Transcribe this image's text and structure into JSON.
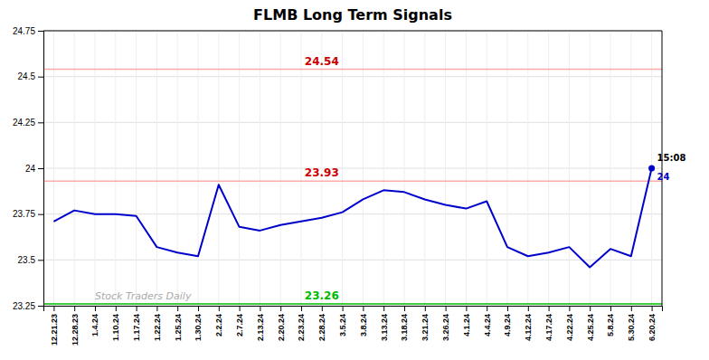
{
  "chart_data": {
    "type": "line",
    "title": "FLMB Long Term Signals",
    "categories": [
      "12.21.23",
      "12.28.23",
      "1.4.24",
      "1.10.24",
      "1.17.24",
      "1.22.24",
      "1.25.24",
      "1.30.24",
      "2.2.24",
      "2.7.24",
      "2.13.24",
      "2.20.24",
      "2.23.24",
      "2.28.24",
      "3.5.24",
      "3.8.24",
      "3.13.24",
      "3.18.24",
      "3.21.24",
      "3.26.24",
      "4.1.24",
      "4.4.24",
      "4.9.24",
      "4.12.24",
      "4.17.24",
      "4.22.24",
      "4.25.24",
      "5.8.24",
      "5.30.24",
      "6.20.24"
    ],
    "values": [
      23.71,
      23.77,
      23.75,
      23.75,
      23.74,
      23.57,
      23.54,
      23.52,
      23.91,
      23.68,
      23.66,
      23.69,
      23.71,
      23.73,
      23.76,
      23.83,
      23.88,
      23.87,
      23.83,
      23.8,
      23.78,
      23.82,
      23.57,
      23.52,
      23.54,
      23.57,
      23.46,
      23.56,
      23.52,
      24.0
    ],
    "value_labels": [
      null,
      null,
      null,
      null,
      null,
      null,
      null,
      null,
      null,
      null,
      null,
      null,
      null,
      null,
      null,
      null,
      null,
      null,
      null,
      null,
      null,
      null,
      null,
      null,
      null,
      null,
      null,
      null,
      null,
      "24"
    ],
    "color": "#0000cc",
    "ylim": [
      23.25,
      24.75
    ],
    "yticks": [
      23.25,
      23.5,
      23.75,
      24,
      24.25,
      24.5,
      24.75
    ],
    "grid": true,
    "hlines": [
      {
        "value": 24.54,
        "label": "24.54",
        "color": "#ffaaaa"
      },
      {
        "value": 23.93,
        "label": "23.93",
        "color": "#ffaaaa"
      },
      {
        "value": 23.26,
        "label": "23.26",
        "color": "#00bb00"
      }
    ],
    "end_time_label": "15:08",
    "watermark": "Stock Traders Daily"
  }
}
